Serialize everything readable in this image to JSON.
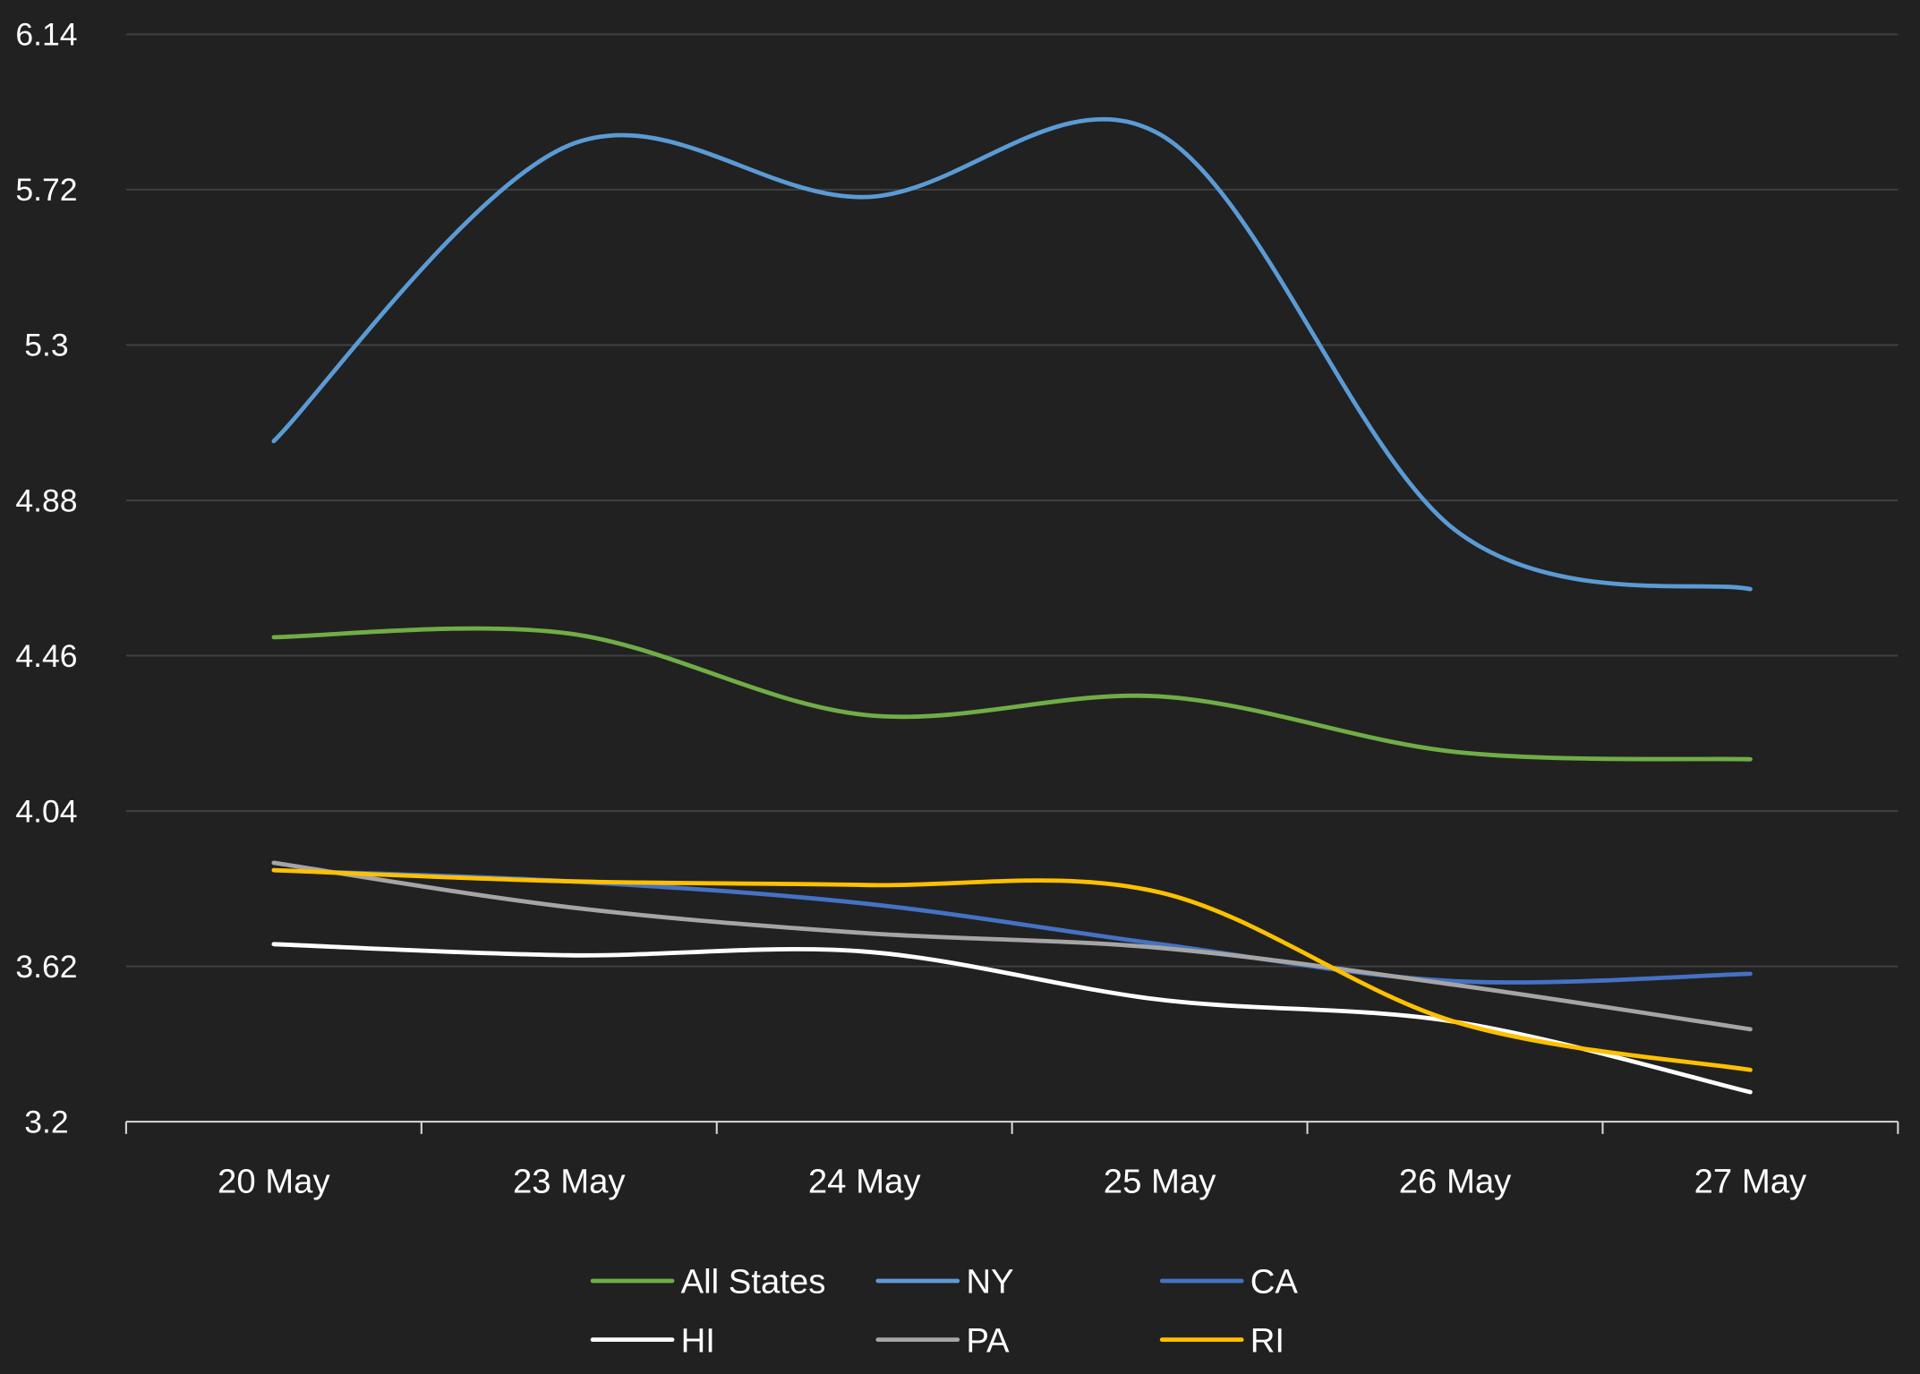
{
  "chart_data": {
    "type": "line",
    "title": "",
    "xlabel": "",
    "ylabel": "",
    "categories": [
      "20 May",
      "23 May",
      "24 May",
      "25 May",
      "26 May",
      "27 May"
    ],
    "y_ticks": [
      "3.2",
      "3.62",
      "4.04",
      "4.46",
      "4.88",
      "5.3",
      "5.72",
      "6.14"
    ],
    "ylim": [
      3.2,
      6.14
    ],
    "grid": true,
    "smooth": true,
    "legend_position": "bottom",
    "series": [
      {
        "name": "All States",
        "color": "#70ad47",
        "values": [
          4.51,
          4.52,
          4.3,
          4.35,
          4.2,
          4.18
        ]
      },
      {
        "name": "NY",
        "color": "#5b9bd5",
        "values": [
          5.04,
          5.84,
          5.7,
          5.87,
          4.8,
          4.64
        ]
      },
      {
        "name": "CA",
        "color": "#4472c4",
        "values": [
          3.88,
          3.85,
          3.79,
          3.68,
          3.58,
          3.6
        ]
      },
      {
        "name": "HI",
        "color": "#ffffff",
        "values": [
          3.68,
          3.65,
          3.66,
          3.53,
          3.47,
          3.28
        ]
      },
      {
        "name": "PA",
        "color": "#a5a5a5",
        "values": [
          3.9,
          3.78,
          3.71,
          3.67,
          3.57,
          3.45
        ]
      },
      {
        "name": "RI",
        "color": "#ffc000",
        "values": [
          3.88,
          3.85,
          3.84,
          3.82,
          3.47,
          3.34
        ]
      }
    ]
  }
}
